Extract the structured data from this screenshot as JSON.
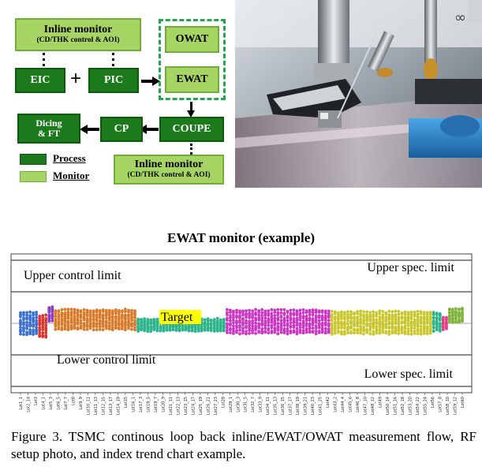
{
  "flow": {
    "inline_monitor_top": {
      "title": "Inline monitor",
      "subtitle": "(CD/THK control & AOI)"
    },
    "eic": "EIC",
    "plus": "+",
    "pic": "PIC",
    "owat": "OWAT",
    "ewat": "EWAT",
    "coupe": "COUPE",
    "cp": "CP",
    "dicing": {
      "line1": "Dicing",
      "line2": "& FT"
    },
    "inline_monitor_bottom": {
      "title": "Inline monitor",
      "subtitle": "(CD/THK control & AOI)"
    },
    "legend": {
      "process": "Process",
      "monitor": "Monitor"
    },
    "colors": {
      "process": "#1c7a1c",
      "monitor": "#a6d564",
      "dashed_frame": "#22a84a"
    }
  },
  "photo": {
    "caption_marks": "∞"
  },
  "chart_data": {
    "type": "scatter",
    "title": "EWAT monitor (example)",
    "upper_spec_limit": {
      "label": "Upper spec. limit",
      "value": 2.0
    },
    "upper_control_limit": {
      "label": "Upper control limit",
      "value": 1.0
    },
    "target": {
      "label": "Target",
      "value": 0
    },
    "lower_control_limit": {
      "label": "Lower control limit",
      "value": -1.0
    },
    "lower_spec_limit": {
      "label": "Lower spec. limit",
      "value": -2.0
    },
    "ylim": [
      -2.2,
      2.2
    ],
    "segments": [
      {
        "color": "#3a6fd1",
        "count": 6,
        "center": 0.0,
        "spread": 0.34
      },
      {
        "color": "#d9342e",
        "count": 3,
        "center": -0.1,
        "spread": 0.34
      },
      {
        "color": "#8a3fbf",
        "count": 2,
        "center": 0.3,
        "spread": 0.2
      },
      {
        "color": "#d97b2a",
        "count": 26,
        "center": 0.12,
        "spread": 0.3
      },
      {
        "color": "#2db48a",
        "count": 28,
        "center": -0.05,
        "spread": 0.18
      },
      {
        "color": "#cc35c5",
        "count": 33,
        "center": 0.05,
        "spread": 0.36
      },
      {
        "color": "#c9c72c",
        "count": 32,
        "center": 0.02,
        "spread": 0.34
      },
      {
        "color": "#2db48a",
        "count": 3,
        "center": 0.05,
        "spread": 0.28
      },
      {
        "color": "#e0408a",
        "count": 2,
        "center": 0.0,
        "spread": 0.18
      },
      {
        "color": "#7fb33d",
        "count": 5,
        "center": 0.25,
        "spread": 0.2
      }
    ],
    "tick_labels": [
      "Lot1_1",
      "Lot2_14",
      "Lot3",
      "Lot4_1",
      "Lot5_3",
      "Lot6_5",
      "Lot7_7",
      "Lot8",
      "Lot9_9",
      "Lot10_11",
      "Lot11_13",
      "Lot12_15",
      "Lot13_17",
      "Lot14_19",
      "Lot15",
      "Lot16_1",
      "Lot17_3",
      "Lot18_5",
      "Lot19_7",
      "Lot20_9",
      "Lot21_11",
      "Lot22_13",
      "Lot23_15",
      "Lot24_17",
      "Lot25_19",
      "Lot26_21",
      "Lot27_23",
      "Lot28",
      "Lot29_1",
      "Lot30_3",
      "Lot31_5",
      "Lot32_7",
      "Lot33_9",
      "Lot34_11",
      "Lot35_13",
      "Lot36_15",
      "Lot37_17",
      "Lot38_19",
      "Lot39_21",
      "Lot40_23",
      "Lot41_25",
      "Lot42",
      "Lot43_2",
      "Lot44_4",
      "Lot45_6",
      "Lot46_8",
      "Lot47_10",
      "Lot48_12",
      "Lot49",
      "Lot50_14",
      "Lot51_16",
      "Lot52_18",
      "Lot53_20",
      "Lot54_22",
      "Lot55_24",
      "Lot56",
      "Lot57_8",
      "Lot58_10",
      "Lot59_12",
      "Lot60"
    ]
  },
  "caption": "Figure 3. TSMC continous loop back inline/EWAT/OWAT measurement flow, RF setup photo, and index trend chart example."
}
